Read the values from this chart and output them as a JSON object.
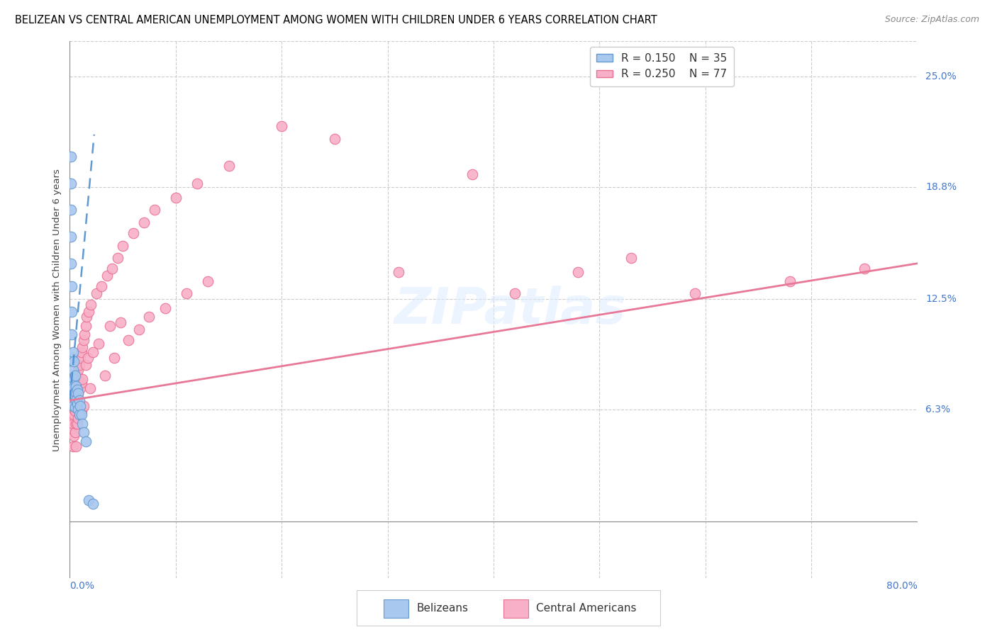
{
  "title": "BELIZEAN VS CENTRAL AMERICAN UNEMPLOYMENT AMONG WOMEN WITH CHILDREN UNDER 6 YEARS CORRELATION CHART",
  "source": "Source: ZipAtlas.com",
  "ylabel": "Unemployment Among Women with Children Under 6 years",
  "xtick_left": "0.0%",
  "xtick_right": "80.0%",
  "xlim": [
    0.0,
    0.8
  ],
  "ylim": [
    -0.032,
    0.27
  ],
  "yticks": [
    0.063,
    0.125,
    0.188,
    0.25
  ],
  "ytick_labels": [
    "6.3%",
    "12.5%",
    "18.8%",
    "25.0%"
  ],
  "belizean_color": "#a8c8f0",
  "belizean_edge_color": "#6699cc",
  "central_american_color": "#f8b0c8",
  "central_american_edge_color": "#e87090",
  "belizean_line_color": "#4488cc",
  "central_american_line_color": "#e87898",
  "legend_r1": "R = 0.150",
  "legend_n1": "N = 35",
  "legend_r2": "R = 0.250",
  "legend_n2": "N = 77",
  "legend_label1": "Belizeans",
  "legend_label2": "Central Americans",
  "watermark": "ZIPatlas",
  "belizean_x": [
    0.001,
    0.001,
    0.001,
    0.001,
    0.001,
    0.002,
    0.002,
    0.002,
    0.002,
    0.002,
    0.003,
    0.003,
    0.003,
    0.003,
    0.004,
    0.004,
    0.004,
    0.005,
    0.005,
    0.005,
    0.006,
    0.006,
    0.007,
    0.007,
    0.008,
    0.008,
    0.009,
    0.009,
    0.01,
    0.011,
    0.012,
    0.013,
    0.015,
    0.018,
    0.022
  ],
  "belizean_y": [
    0.205,
    0.19,
    0.175,
    0.16,
    0.145,
    0.132,
    0.118,
    0.105,
    0.092,
    0.078,
    0.095,
    0.085,
    0.075,
    0.065,
    0.09,
    0.08,
    0.07,
    0.082,
    0.073,
    0.064,
    0.076,
    0.068,
    0.074,
    0.066,
    0.072,
    0.063,
    0.068,
    0.06,
    0.065,
    0.06,
    0.055,
    0.05,
    0.045,
    0.012,
    0.01
  ],
  "central_american_x": [
    0.001,
    0.001,
    0.002,
    0.002,
    0.003,
    0.003,
    0.003,
    0.004,
    0.004,
    0.004,
    0.005,
    0.005,
    0.005,
    0.006,
    0.006,
    0.006,
    0.006,
    0.007,
    0.007,
    0.007,
    0.008,
    0.008,
    0.008,
    0.009,
    0.009,
    0.01,
    0.01,
    0.01,
    0.011,
    0.011,
    0.011,
    0.012,
    0.012,
    0.013,
    0.013,
    0.014,
    0.015,
    0.015,
    0.016,
    0.017,
    0.018,
    0.019,
    0.02,
    0.022,
    0.025,
    0.027,
    0.03,
    0.033,
    0.035,
    0.038,
    0.04,
    0.042,
    0.045,
    0.048,
    0.05,
    0.055,
    0.06,
    0.065,
    0.07,
    0.075,
    0.08,
    0.09,
    0.1,
    0.11,
    0.12,
    0.13,
    0.15,
    0.2,
    0.25,
    0.31,
    0.38,
    0.42,
    0.48,
    0.53,
    0.59,
    0.68,
    0.75
  ],
  "central_american_y": [
    0.072,
    0.058,
    0.065,
    0.052,
    0.068,
    0.055,
    0.042,
    0.072,
    0.06,
    0.048,
    0.075,
    0.062,
    0.05,
    0.078,
    0.065,
    0.055,
    0.042,
    0.082,
    0.068,
    0.055,
    0.085,
    0.072,
    0.058,
    0.088,
    0.062,
    0.092,
    0.075,
    0.06,
    0.095,
    0.078,
    0.062,
    0.098,
    0.08,
    0.102,
    0.065,
    0.105,
    0.11,
    0.088,
    0.115,
    0.092,
    0.118,
    0.075,
    0.122,
    0.095,
    0.128,
    0.1,
    0.132,
    0.082,
    0.138,
    0.11,
    0.142,
    0.092,
    0.148,
    0.112,
    0.155,
    0.102,
    0.162,
    0.108,
    0.168,
    0.115,
    0.175,
    0.12,
    0.182,
    0.128,
    0.19,
    0.135,
    0.2,
    0.222,
    0.215,
    0.14,
    0.195,
    0.128,
    0.14,
    0.148,
    0.128,
    0.135,
    0.142
  ],
  "marker_size": 110,
  "title_fontsize": 10.5,
  "source_fontsize": 9,
  "axis_label_fontsize": 9.5,
  "tick_fontsize": 10,
  "legend_fontsize": 11,
  "belizean_line_x": [
    0.0,
    0.023
  ],
  "belizean_line_y_intercept": 0.068,
  "belizean_line_slope": 6.5,
  "central_american_line_x": [
    0.0,
    0.8
  ],
  "central_american_line_y": [
    0.068,
    0.145
  ]
}
